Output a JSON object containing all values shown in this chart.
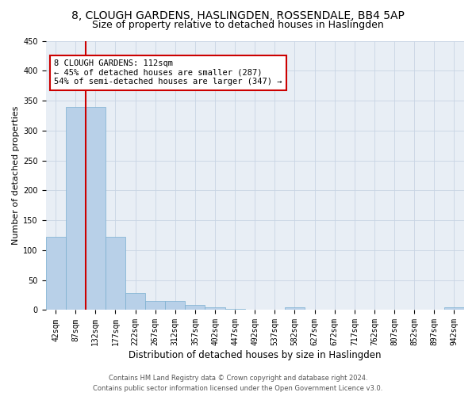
{
  "title": "8, CLOUGH GARDENS, HASLINGDEN, ROSSENDALE, BB4 5AP",
  "subtitle": "Size of property relative to detached houses in Haslingden",
  "xlabel": "Distribution of detached houses by size in Haslingden",
  "ylabel": "Number of detached properties",
  "bar_values": [
    122,
    340,
    340,
    122,
    29,
    15,
    15,
    8,
    5,
    2,
    0,
    0,
    4,
    0,
    0,
    0,
    0,
    0,
    0,
    0,
    4
  ],
  "bin_labels": [
    "42sqm",
    "87sqm",
    "132sqm",
    "177sqm",
    "222sqm",
    "267sqm",
    "312sqm",
    "357sqm",
    "402sqm",
    "447sqm",
    "492sqm",
    "537sqm",
    "582sqm",
    "627sqm",
    "672sqm",
    "717sqm",
    "762sqm",
    "807sqm",
    "852sqm",
    "897sqm",
    "942sqm"
  ],
  "bar_color": "#b8d0e8",
  "bar_edge_color": "#7aafd0",
  "plot_bg_color": "#e8eef5",
  "grid_color": "#c8d4e4",
  "property_line_x": 1.5,
  "annotation_text": "8 CLOUGH GARDENS: 112sqm\n← 45% of detached houses are smaller (287)\n54% of semi-detached houses are larger (347) →",
  "annotation_box_facecolor": "white",
  "annotation_box_edgecolor": "#cc0000",
  "property_line_color": "#cc0000",
  "ylim": [
    0,
    450
  ],
  "yticks": [
    0,
    50,
    100,
    150,
    200,
    250,
    300,
    350,
    400,
    450
  ],
  "footer_line1": "Contains HM Land Registry data © Crown copyright and database right 2024.",
  "footer_line2": "Contains public sector information licensed under the Open Government Licence v3.0.",
  "title_fontsize": 10,
  "subtitle_fontsize": 9,
  "tick_fontsize": 7,
  "ylabel_fontsize": 8,
  "xlabel_fontsize": 8.5,
  "annotation_fontsize": 7.5,
  "footer_fontsize": 6
}
